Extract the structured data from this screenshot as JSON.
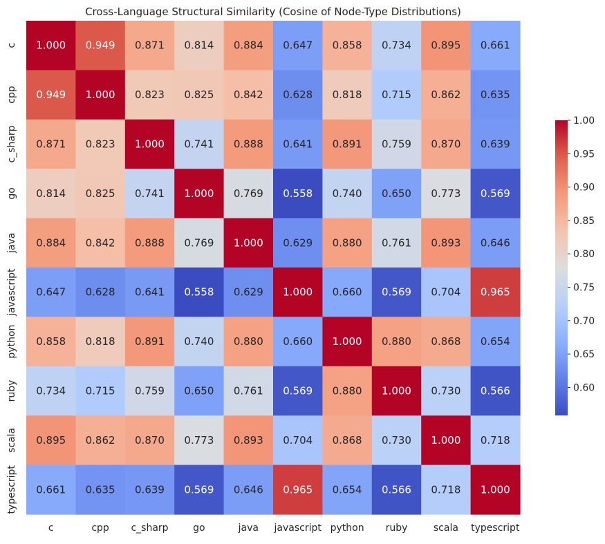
{
  "chart_data": {
    "type": "heatmap",
    "title": "Cross-Language Structural Similarity (Cosine of Node-Type Distributions)",
    "xlabel": "",
    "ylabel": "",
    "x_categories": [
      "c",
      "cpp",
      "c_sharp",
      "go",
      "java",
      "javascript",
      "python",
      "ruby",
      "scala",
      "typescript"
    ],
    "y_categories": [
      "c",
      "cpp",
      "c_sharp",
      "go",
      "java",
      "javascript",
      "python",
      "ruby",
      "scala",
      "typescript"
    ],
    "values": [
      [
        1.0,
        0.949,
        0.871,
        0.814,
        0.884,
        0.647,
        0.858,
        0.734,
        0.895,
        0.661
      ],
      [
        0.949,
        1.0,
        0.823,
        0.825,
        0.842,
        0.628,
        0.818,
        0.715,
        0.862,
        0.635
      ],
      [
        0.871,
        0.823,
        1.0,
        0.741,
        0.888,
        0.641,
        0.891,
        0.759,
        0.87,
        0.639
      ],
      [
        0.814,
        0.825,
        0.741,
        1.0,
        0.769,
        0.558,
        0.74,
        0.65,
        0.773,
        0.569
      ],
      [
        0.884,
        0.842,
        0.888,
        0.769,
        1.0,
        0.629,
        0.88,
        0.761,
        0.893,
        0.646
      ],
      [
        0.647,
        0.628,
        0.641,
        0.558,
        0.629,
        1.0,
        0.66,
        0.569,
        0.704,
        0.965
      ],
      [
        0.858,
        0.818,
        0.891,
        0.74,
        0.88,
        0.66,
        1.0,
        0.88,
        0.868,
        0.654
      ],
      [
        0.734,
        0.715,
        0.759,
        0.65,
        0.761,
        0.569,
        0.88,
        1.0,
        0.73,
        0.566
      ],
      [
        0.895,
        0.862,
        0.87,
        0.773,
        0.893,
        0.704,
        0.868,
        0.73,
        1.0,
        0.718
      ],
      [
        0.661,
        0.635,
        0.639,
        0.569,
        0.646,
        0.965,
        0.654,
        0.566,
        0.718,
        1.0
      ]
    ],
    "value_format": "3 decimals",
    "colormap": "coolwarm",
    "colorbar": {
      "range": [
        0.558,
        1.0
      ],
      "ticks": [
        0.6,
        0.65,
        0.7,
        0.75,
        0.8,
        0.85,
        0.9,
        0.95,
        1.0
      ],
      "tick_labels": [
        "0.60",
        "0.65",
        "0.70",
        "0.75",
        "0.80",
        "0.85",
        "0.90",
        "0.95",
        "1.00"
      ]
    }
  }
}
